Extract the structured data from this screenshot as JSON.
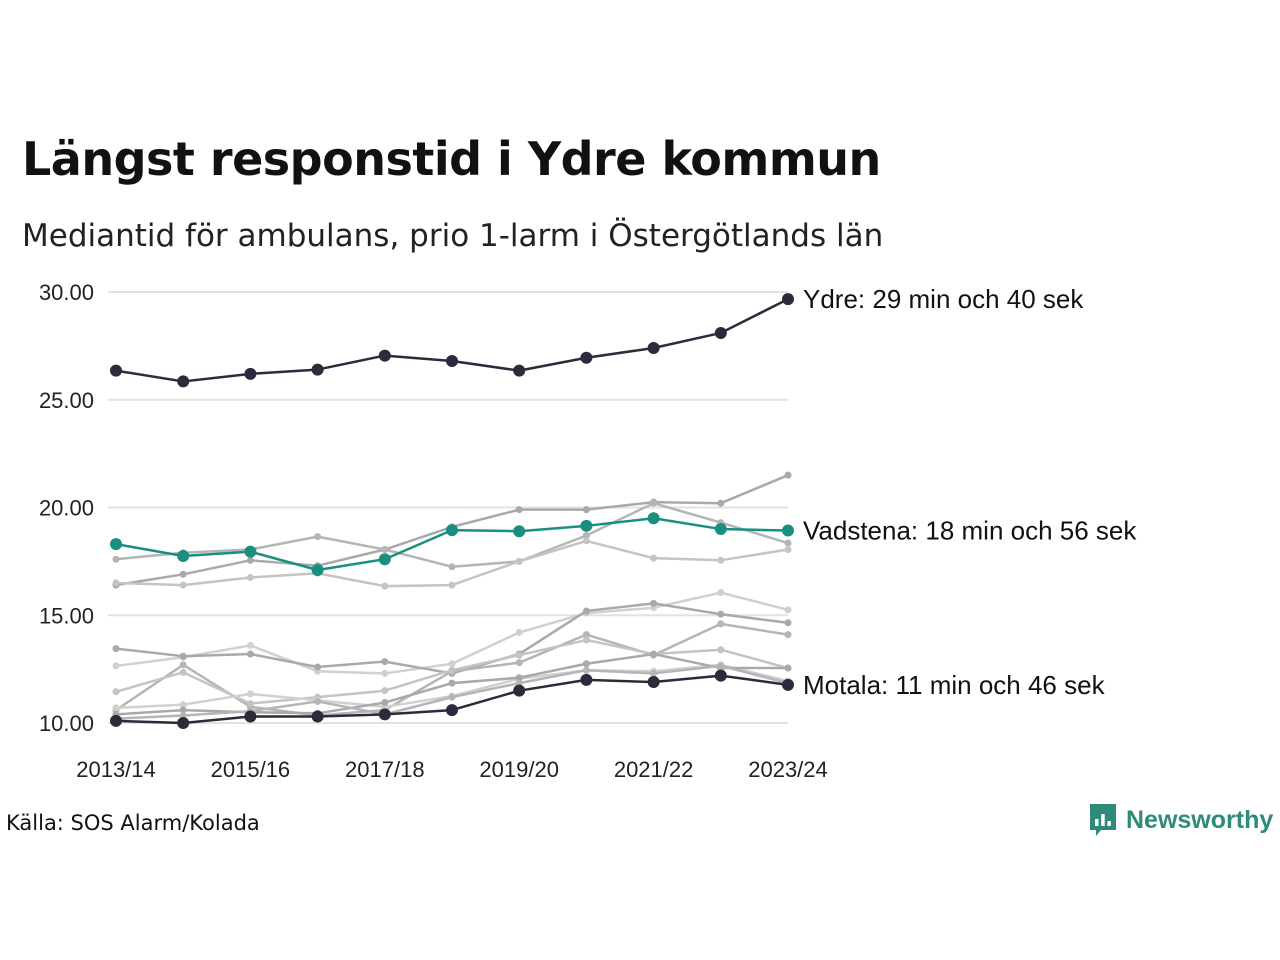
{
  "title": "Längst responstid i Ydre kommun",
  "subtitle": "Mediantid för ambulans, prio 1-larm i Östergötlands län",
  "source": "Källa: SOS Alarm/Kolada",
  "brand": {
    "name": "Newsworthy",
    "icon": "newsworthy-logo-icon",
    "color": "#2e8b7a"
  },
  "chart_data": {
    "type": "line",
    "x": [
      "2013/14",
      "2014/15",
      "2015/16",
      "2016/17",
      "2017/18",
      "2018/19",
      "2019/20",
      "2020/21",
      "2021/22",
      "2022/23",
      "2023/24"
    ],
    "xticks": [
      "2013/14",
      "2015/16",
      "2017/18",
      "2019/20",
      "2021/22",
      "2023/24"
    ],
    "yticks": [
      "10.00",
      "15.00",
      "20.00",
      "25.00",
      "30.00"
    ],
    "ylim": [
      10,
      30
    ],
    "grid": true,
    "colors": {
      "highlight_dark": "#2b2b3b",
      "highlight_teal": "#1a8f80",
      "background_lines": [
        "#a9a9a9",
        "#b5b5b5",
        "#c4c4c4",
        "#d0d0d0"
      ]
    },
    "series": [
      {
        "name": "Ydre",
        "label": "Ydre: 29 min och 40 sek",
        "role": "dark",
        "values": [
          26.35,
          25.85,
          26.2,
          26.4,
          27.05,
          26.8,
          26.35,
          26.95,
          27.4,
          28.1,
          29.67
        ]
      },
      {
        "name": "Vadstena",
        "label": "Vadstena: 18 min och 56 sek",
        "role": "teal",
        "values": [
          18.3,
          17.75,
          17.95,
          17.1,
          17.6,
          18.95,
          18.9,
          19.15,
          19.5,
          19.0,
          18.93
        ]
      },
      {
        "name": "Motala",
        "label": "Motala: 11 min och 46 sek",
        "role": "dark",
        "values": [
          10.1,
          10.0,
          10.3,
          10.3,
          10.4,
          10.6,
          11.5,
          12.0,
          11.9,
          12.2,
          11.77
        ]
      },
      {
        "values": [
          16.4,
          16.9,
          17.55,
          17.3,
          18.05,
          19.1,
          19.9,
          19.9,
          20.25,
          20.2,
          21.5
        ]
      },
      {
        "values": [
          17.6,
          17.9,
          18.05,
          18.65,
          18.05,
          17.25,
          17.5,
          18.7,
          20.2,
          19.3,
          18.35
        ]
      },
      {
        "values": [
          16.5,
          16.4,
          16.75,
          16.95,
          16.35,
          16.4,
          17.5,
          18.45,
          17.65,
          17.55,
          18.05
        ]
      },
      {
        "values": [
          12.65,
          13.05,
          13.6,
          12.4,
          12.3,
          12.75,
          14.2,
          15.1,
          15.35,
          16.05,
          15.25
        ]
      },
      {
        "values": [
          13.45,
          13.1,
          13.2,
          12.6,
          12.85,
          12.3,
          13.2,
          15.2,
          15.55,
          15.05,
          14.65
        ]
      },
      {
        "values": [
          10.6,
          12.7,
          10.75,
          10.35,
          10.6,
          12.4,
          12.8,
          14.1,
          13.15,
          14.6,
          14.1
        ]
      },
      {
        "values": [
          11.45,
          12.35,
          10.9,
          11.2,
          11.5,
          12.45,
          13.15,
          13.85,
          13.2,
          13.4,
          12.55
        ]
      },
      {
        "values": [
          10.7,
          10.85,
          11.35,
          11.05,
          10.75,
          11.25,
          12.05,
          12.45,
          12.4,
          12.7,
          11.95
        ]
      },
      {
        "values": [
          10.4,
          10.6,
          10.5,
          10.45,
          10.95,
          11.85,
          12.1,
          12.75,
          13.2,
          12.55,
          12.55
        ]
      },
      {
        "values": [
          10.2,
          10.35,
          10.55,
          11.0,
          10.4,
          11.2,
          11.85,
          12.45,
          12.3,
          12.65,
          11.85
        ]
      }
    ]
  }
}
